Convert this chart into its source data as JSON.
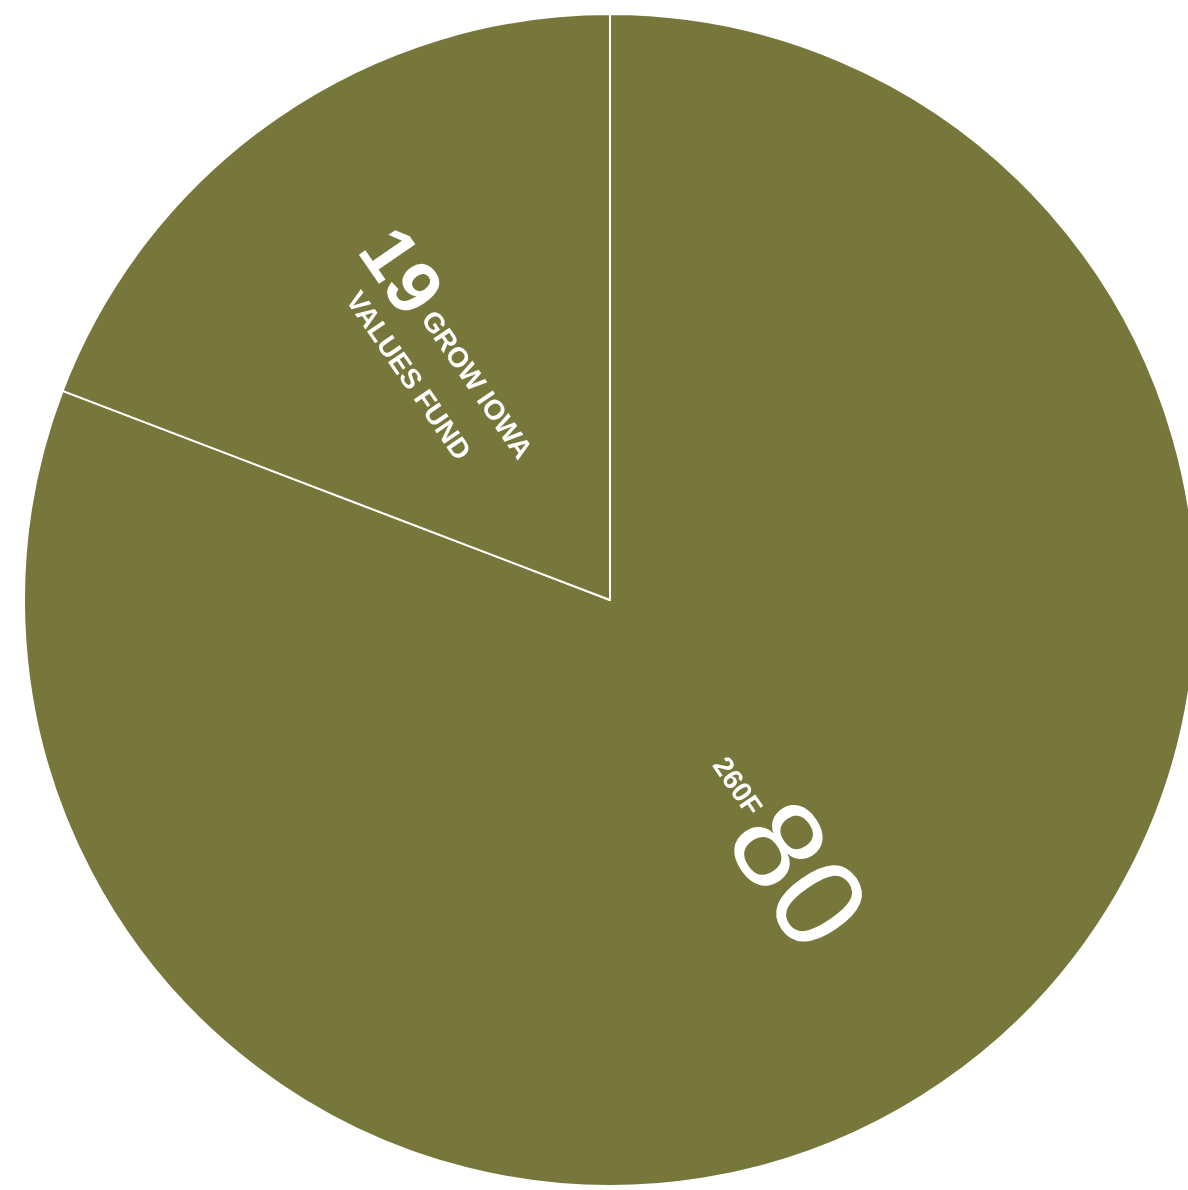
{
  "chart_data": {
    "type": "pie",
    "categories": [
      "260F",
      "GROW IOWA VALUES FUND"
    ],
    "values": [
      80,
      19
    ],
    "colors": [
      "#77773b",
      "#77773b"
    ],
    "data_labels": true
  }
}
